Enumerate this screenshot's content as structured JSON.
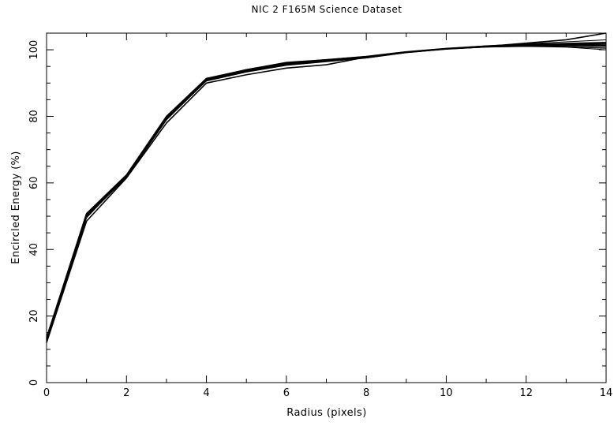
{
  "chart_data": {
    "type": "line",
    "title": "NIC 2 F165M Science Dataset",
    "xlabel": "Radius (pixels)",
    "ylabel": "Encircled Energy (%)",
    "xlim": [
      0,
      14
    ],
    "ylim": [
      0,
      105
    ],
    "x_ticks": [
      0,
      2,
      4,
      6,
      8,
      10,
      12,
      14
    ],
    "y_ticks": [
      0,
      20,
      40,
      60,
      80,
      100
    ],
    "grid": false,
    "legend": "none",
    "line_color": "#000000",
    "x": [
      0,
      1,
      2,
      3,
      4,
      5,
      6,
      7,
      8,
      9,
      10,
      11,
      12,
      13,
      14
    ],
    "series": [
      {
        "values": [
          13.0,
          50.5,
          62.0,
          79.5,
          91.0,
          93.8,
          95.8,
          96.8,
          97.8,
          99.3,
          100.3,
          101.0,
          101.4,
          101.6,
          101.8
        ]
      },
      {
        "values": [
          12.5,
          49.8,
          61.8,
          79.0,
          90.8,
          93.5,
          95.5,
          96.6,
          97.6,
          99.2,
          100.2,
          100.9,
          101.2,
          101.4,
          101.4
        ]
      },
      {
        "values": [
          13.5,
          50.8,
          62.4,
          80.0,
          91.4,
          94.0,
          96.2,
          97.0,
          98.0,
          99.4,
          100.4,
          101.1,
          101.6,
          101.9,
          102.2
        ]
      },
      {
        "values": [
          12.0,
          48.5,
          61.5,
          78.0,
          90.0,
          92.5,
          94.5,
          95.5,
          97.8,
          99.3,
          100.3,
          101.0,
          102.0,
          103.0,
          105.0
        ]
      },
      {
        "values": [
          12.8,
          50.2,
          62.1,
          79.3,
          90.9,
          93.6,
          95.6,
          96.7,
          97.7,
          99.2,
          100.3,
          100.9,
          101.1,
          101.0,
          100.5
        ]
      },
      {
        "values": [
          13.2,
          50.0,
          61.9,
          79.6,
          91.1,
          93.9,
          96.0,
          96.9,
          97.9,
          99.3,
          100.3,
          101.0,
          101.3,
          101.5,
          101.2
        ]
      },
      {
        "values": [
          12.6,
          49.5,
          62.2,
          79.1,
          90.6,
          93.3,
          95.3,
          96.4,
          97.5,
          99.1,
          100.2,
          100.8,
          101.0,
          100.8,
          100.0
        ]
      },
      {
        "values": [
          13.1,
          50.6,
          62.3,
          79.8,
          91.2,
          94.1,
          96.1,
          97.1,
          98.0,
          99.4,
          100.4,
          101.2,
          101.8,
          102.4,
          103.0
        ]
      },
      {
        "values": [
          12.9,
          49.9,
          61.7,
          79.2,
          90.7,
          93.4,
          95.4,
          96.5,
          97.6,
          99.2,
          100.2,
          100.9,
          101.5,
          101.3,
          101.0
        ]
      }
    ]
  }
}
